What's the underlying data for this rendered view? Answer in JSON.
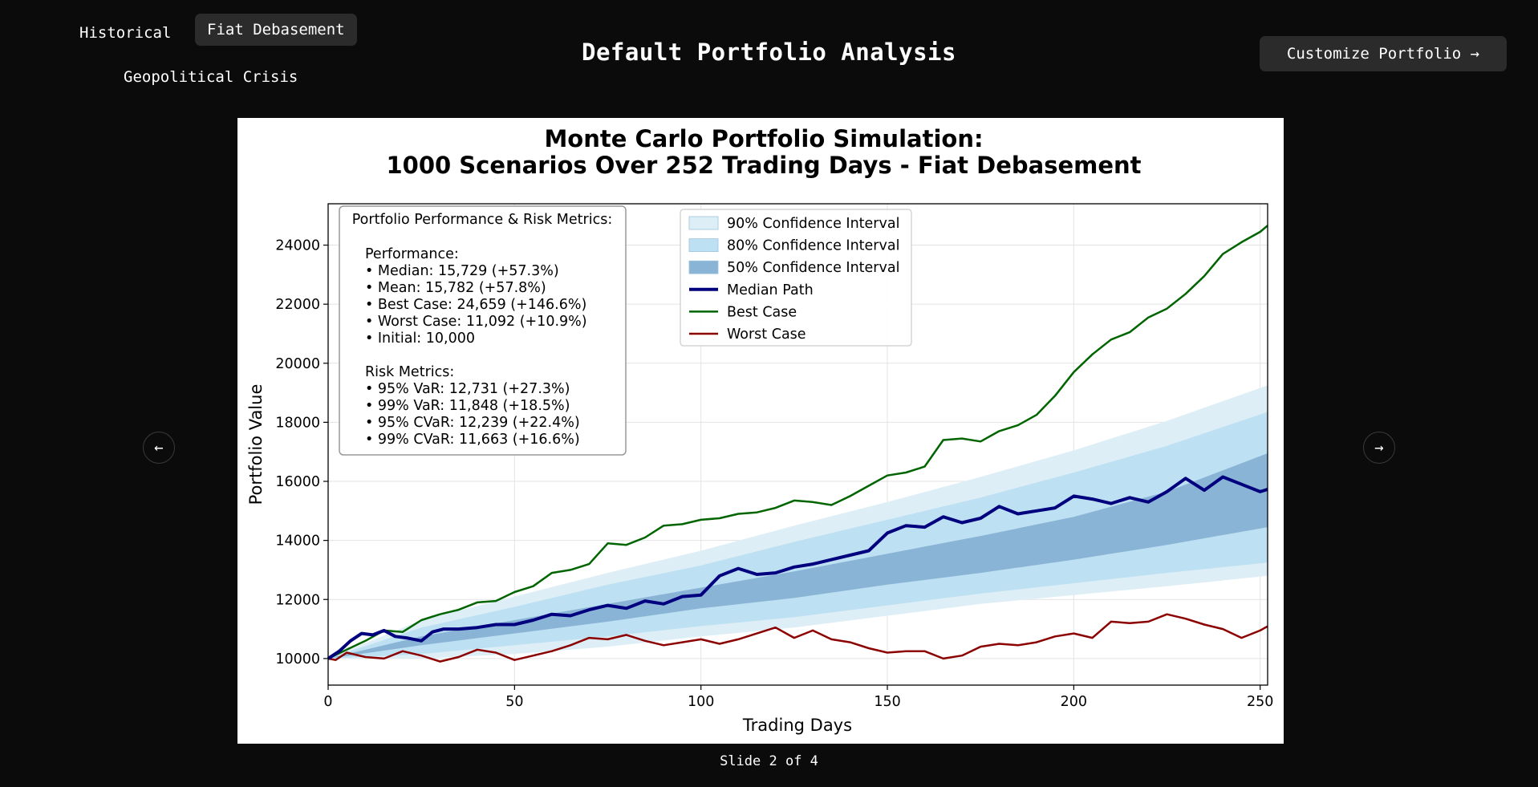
{
  "tabs": [
    {
      "label": "Historical",
      "active": false
    },
    {
      "label": "Fiat Debasement",
      "active": true
    },
    {
      "label": "Geopolitical Crisis",
      "active": false
    }
  ],
  "page_title": "Default Portfolio Analysis",
  "customize_button": {
    "label": "Customize Portfolio →"
  },
  "nav": {
    "prev_icon": "arrow-left-icon",
    "next_icon": "arrow-right-icon",
    "prev_glyph": "←",
    "next_glyph": "→"
  },
  "slide_counter": "Slide 2 of 4",
  "chart_data": {
    "type": "line",
    "title_line1": "Monte Carlo Portfolio Simulation:",
    "title_line2": "1000 Scenarios Over 252 Trading Days - Fiat Debasement",
    "xlabel": "Trading Days",
    "ylabel": "Portfolio Value",
    "xlim": [
      0,
      252
    ],
    "ylim": [
      9100,
      25400
    ],
    "x_ticks": [
      0,
      50,
      100,
      150,
      200,
      250
    ],
    "y_ticks": [
      10000,
      12000,
      14000,
      16000,
      18000,
      20000,
      22000,
      24000
    ],
    "grid": true,
    "legend_position": "top-center",
    "legend": [
      {
        "label": "90% Confidence Interval",
        "kind": "band",
        "color": "#ddeef6"
      },
      {
        "label": "80% Confidence Interval",
        "kind": "band",
        "color": "#bde0f2"
      },
      {
        "label": "50% Confidence Interval",
        "kind": "band",
        "color": "#8ab4d6"
      },
      {
        "label": "Median Path",
        "kind": "line",
        "color": "#00007f"
      },
      {
        "label": "Best Case",
        "kind": "line",
        "color": "#006400"
      },
      {
        "label": "Worst Case",
        "kind": "line",
        "color": "#8b0000"
      }
    ],
    "bands": [
      {
        "name": "90% Confidence Interval",
        "color": "#ddeef6",
        "x": [
          0,
          25,
          50,
          75,
          100,
          125,
          150,
          175,
          200,
          225,
          252
        ],
        "lower": [
          10000,
          10000,
          10150,
          10400,
          10750,
          11050,
          11450,
          11850,
          12150,
          12450,
          12800
        ],
        "upper": [
          10000,
          11300,
          12100,
          12900,
          13650,
          14500,
          15300,
          16150,
          17050,
          18050,
          19250
        ]
      },
      {
        "name": "80% Confidence Interval",
        "color": "#bde0f2",
        "x": [
          0,
          25,
          50,
          75,
          100,
          125,
          150,
          175,
          200,
          225,
          252
        ],
        "lower": [
          10000,
          10150,
          10450,
          10750,
          11100,
          11400,
          11800,
          12200,
          12550,
          12900,
          13250
        ],
        "upper": [
          10000,
          11050,
          11750,
          12500,
          13150,
          13950,
          14700,
          15450,
          16300,
          17200,
          18350
        ]
      },
      {
        "name": "50% Confidence Interval",
        "color": "#8ab4d6",
        "x": [
          0,
          25,
          50,
          75,
          100,
          125,
          150,
          175,
          200,
          225,
          252
        ],
        "lower": [
          10000,
          10450,
          10850,
          11250,
          11700,
          12050,
          12500,
          12900,
          13350,
          13850,
          14450
        ],
        "upper": [
          10000,
          10750,
          11300,
          11850,
          12400,
          12950,
          13550,
          14150,
          14800,
          15650,
          16950
        ]
      }
    ],
    "series": [
      {
        "name": "Median Path",
        "color": "#00007f",
        "width": 4,
        "x": [
          0,
          3,
          6,
          9,
          12,
          15,
          18,
          21,
          25,
          28,
          31,
          35,
          40,
          45,
          50,
          55,
          60,
          65,
          70,
          75,
          80,
          85,
          90,
          95,
          100,
          105,
          110,
          115,
          120,
          125,
          130,
          135,
          140,
          145,
          150,
          155,
          160,
          165,
          170,
          175,
          180,
          185,
          190,
          195,
          200,
          205,
          210,
          215,
          220,
          225,
          230,
          235,
          240,
          245,
          250,
          252
        ],
        "y": [
          10000,
          10250,
          10600,
          10850,
          10800,
          10950,
          10750,
          10700,
          10600,
          10900,
          11000,
          11000,
          11050,
          11150,
          11150,
          11300,
          11500,
          11450,
          11650,
          11800,
          11700,
          11950,
          11850,
          12100,
          12150,
          12800,
          13050,
          12850,
          12900,
          13100,
          13200,
          13350,
          13500,
          13650,
          14250,
          14500,
          14450,
          14800,
          14600,
          14750,
          15150,
          14900,
          15000,
          15100,
          15500,
          15400,
          15250,
          15450,
          15300,
          15650,
          16100,
          15700,
          16150,
          15900,
          15650,
          15730
        ]
      },
      {
        "name": "Best Case",
        "color": "#006400",
        "width": 2.5,
        "x": [
          0,
          5,
          10,
          15,
          20,
          25,
          30,
          35,
          40,
          45,
          50,
          55,
          60,
          65,
          70,
          75,
          80,
          85,
          90,
          95,
          100,
          105,
          110,
          115,
          120,
          125,
          130,
          135,
          140,
          145,
          150,
          155,
          160,
          165,
          170,
          175,
          180,
          185,
          190,
          195,
          200,
          205,
          210,
          215,
          220,
          225,
          230,
          235,
          240,
          245,
          250,
          252
        ],
        "y": [
          10000,
          10300,
          10600,
          10950,
          10900,
          11300,
          11500,
          11650,
          11900,
          11950,
          12250,
          12450,
          12900,
          13000,
          13200,
          13900,
          13850,
          14100,
          14500,
          14550,
          14700,
          14750,
          14900,
          14950,
          15100,
          15350,
          15300,
          15200,
          15500,
          15850,
          16200,
          16300,
          16500,
          17400,
          17450,
          17350,
          17700,
          17900,
          18250,
          18900,
          19700,
          20300,
          20800,
          21050,
          21550,
          21850,
          22350,
          22950,
          23700,
          24100,
          24450,
          24660
        ]
      },
      {
        "name": "Worst Case",
        "color": "#8b0000",
        "width": 2.5,
        "x": [
          0,
          2,
          5,
          10,
          15,
          20,
          25,
          30,
          35,
          40,
          45,
          50,
          55,
          60,
          65,
          70,
          75,
          80,
          85,
          90,
          95,
          100,
          105,
          110,
          115,
          120,
          125,
          130,
          135,
          140,
          145,
          150,
          155,
          160,
          165,
          170,
          175,
          180,
          185,
          190,
          195,
          200,
          205,
          210,
          215,
          220,
          225,
          230,
          235,
          240,
          245,
          250,
          252
        ],
        "y": [
          10000,
          9950,
          10200,
          10050,
          10000,
          10250,
          10100,
          9900,
          10050,
          10300,
          10200,
          9950,
          10100,
          10250,
          10450,
          10700,
          10650,
          10800,
          10600,
          10450,
          10550,
          10650,
          10500,
          10650,
          10850,
          11050,
          10700,
          10950,
          10650,
          10550,
          10350,
          10200,
          10250,
          10250,
          10000,
          10100,
          10400,
          10500,
          10450,
          10550,
          10750,
          10850,
          10700,
          11250,
          11200,
          11250,
          11500,
          11350,
          11150,
          11000,
          10700,
          10950,
          11090
        ]
      }
    ],
    "stats_box": {
      "title": "Portfolio Performance & Risk Metrics:",
      "performance_heading": "Performance:",
      "performance": [
        "• Median: 15,729 (+57.3%)",
        "• Mean: 15,782 (+57.8%)",
        "• Best Case: 24,659 (+146.6%)",
        "• Worst Case: 11,092 (+10.9%)",
        "• Initial: 10,000"
      ],
      "risk_heading": "Risk Metrics:",
      "risk": [
        "• 95% VaR: 12,731 (+27.3%)",
        "• 99% VaR: 11,848 (+18.5%)",
        "• 95% CVaR: 12,239 (+22.4%)",
        "• 99% CVaR: 11,663 (+16.6%)"
      ]
    }
  }
}
